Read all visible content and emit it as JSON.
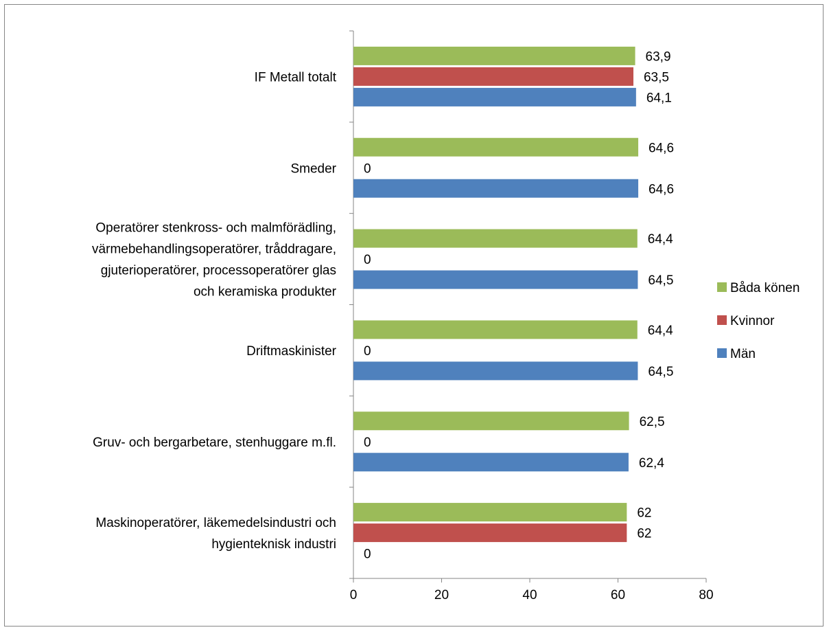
{
  "chart_data": {
    "type": "bar",
    "orientation": "horizontal",
    "title": "",
    "xlabel": "",
    "ylabel": "",
    "xlim": [
      0,
      80
    ],
    "xticks": [
      "0",
      "20",
      "40",
      "60",
      "80"
    ],
    "grid": false,
    "legend_position": "right",
    "categories": [
      [
        "IF Metall totalt"
      ],
      [
        "Smeder"
      ],
      [
        "Operatörer stenkross- och malmförädling,",
        "värmebehandlingsoperatörer, tråddragare,",
        "gjuterioperatörer, processoperatörer glas",
        "och keramiska produkter"
      ],
      [
        "Driftmaskinister"
      ],
      [
        "Gruv- och bergarbetare, stenhuggare m.fl."
      ],
      [
        "Maskinoperatörer, läkemedelsindustri och",
        "hygienteknisk industri"
      ]
    ],
    "series": [
      {
        "name": "Båda könen",
        "color": "#9BBB59",
        "values": [
          63.9,
          64.6,
          64.4,
          64.4,
          62.5,
          62
        ],
        "labels": [
          "63,9",
          "64,6",
          "64,4",
          "64,4",
          "62,5",
          "62"
        ]
      },
      {
        "name": "Kvinnor",
        "color": "#C0504D",
        "values": [
          63.5,
          0,
          0,
          0,
          0,
          62
        ],
        "labels": [
          "63,5",
          "0",
          "0",
          "0",
          "0",
          "62"
        ]
      },
      {
        "name": "Män",
        "color": "#4F81BD",
        "values": [
          64.1,
          64.6,
          64.5,
          64.5,
          62.4,
          0
        ],
        "labels": [
          "64,1",
          "64,6",
          "64,5",
          "64,5",
          "62,4",
          "0"
        ]
      }
    ]
  }
}
